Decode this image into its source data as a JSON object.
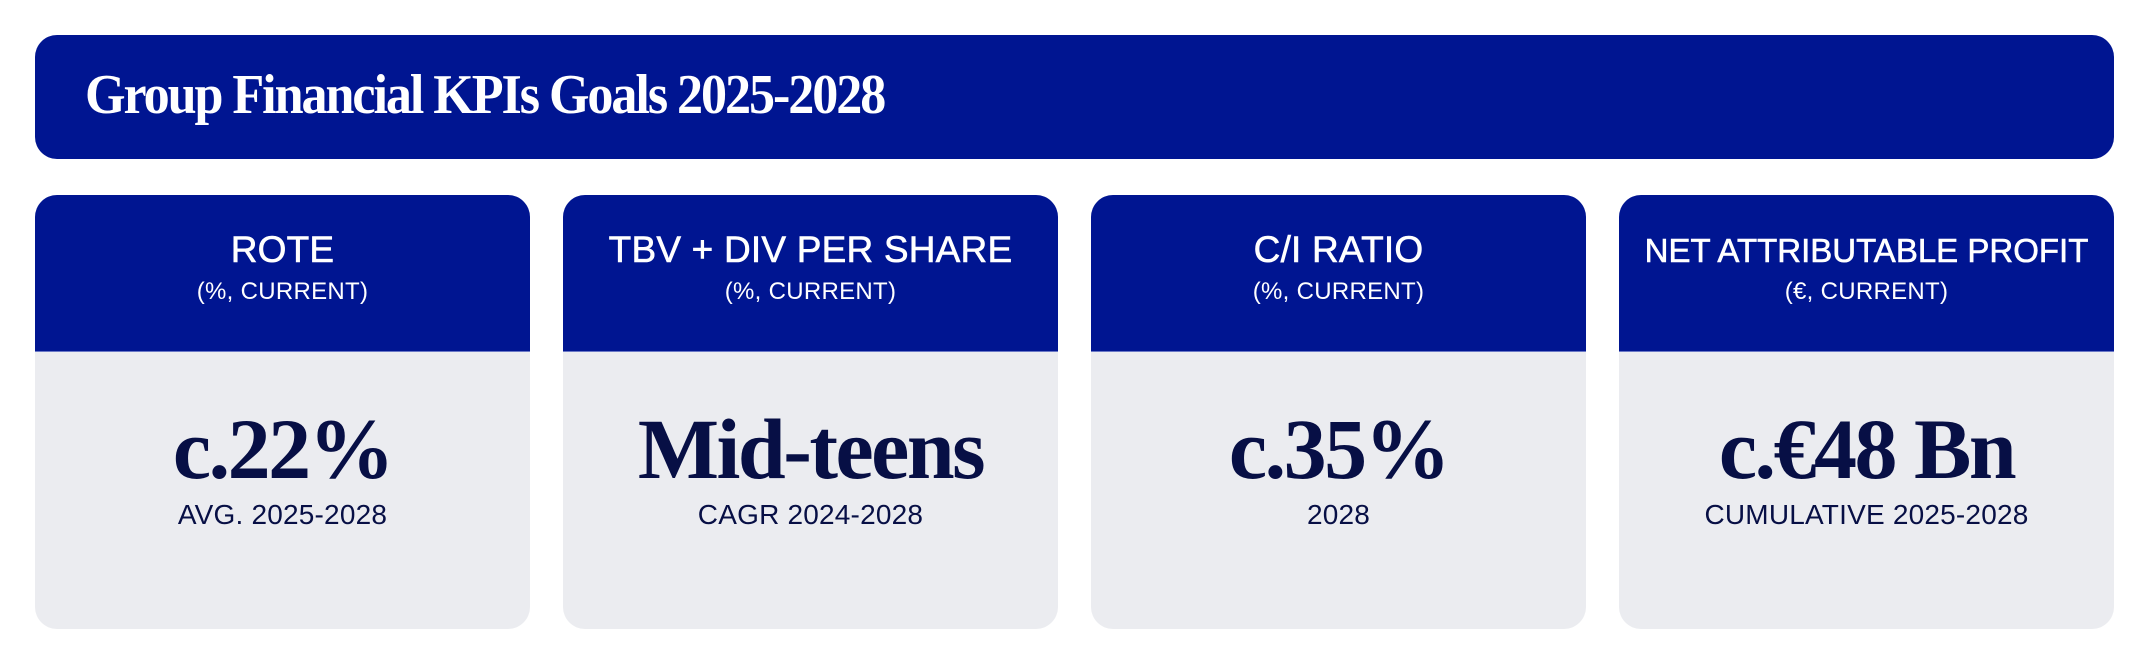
{
  "header": {
    "title": "Group Financial KPIs Goals 2025-2028"
  },
  "colors": {
    "primary_blue": "#001591",
    "card_background": "#EBECF0",
    "value_text": "#070F45"
  },
  "kpis": [
    {
      "name": "ROTE",
      "unit": "(%, CURRENT)",
      "value": "c.22%",
      "period": "AVG. 2025-2028"
    },
    {
      "name": "TBV + DIV PER SHARE",
      "unit": "(%, CURRENT)",
      "value": "Mid-teens",
      "period": "CAGR 2024-2028"
    },
    {
      "name": "C/I RATIO",
      "unit": "(%, CURRENT)",
      "value": "c.35%",
      "period": "2028"
    },
    {
      "name": "NET ATTRIBUTABLE PROFIT",
      "unit": "(€, CURRENT)",
      "value": "c.€48 Bn",
      "period": "CUMULATIVE 2025-2028"
    }
  ]
}
